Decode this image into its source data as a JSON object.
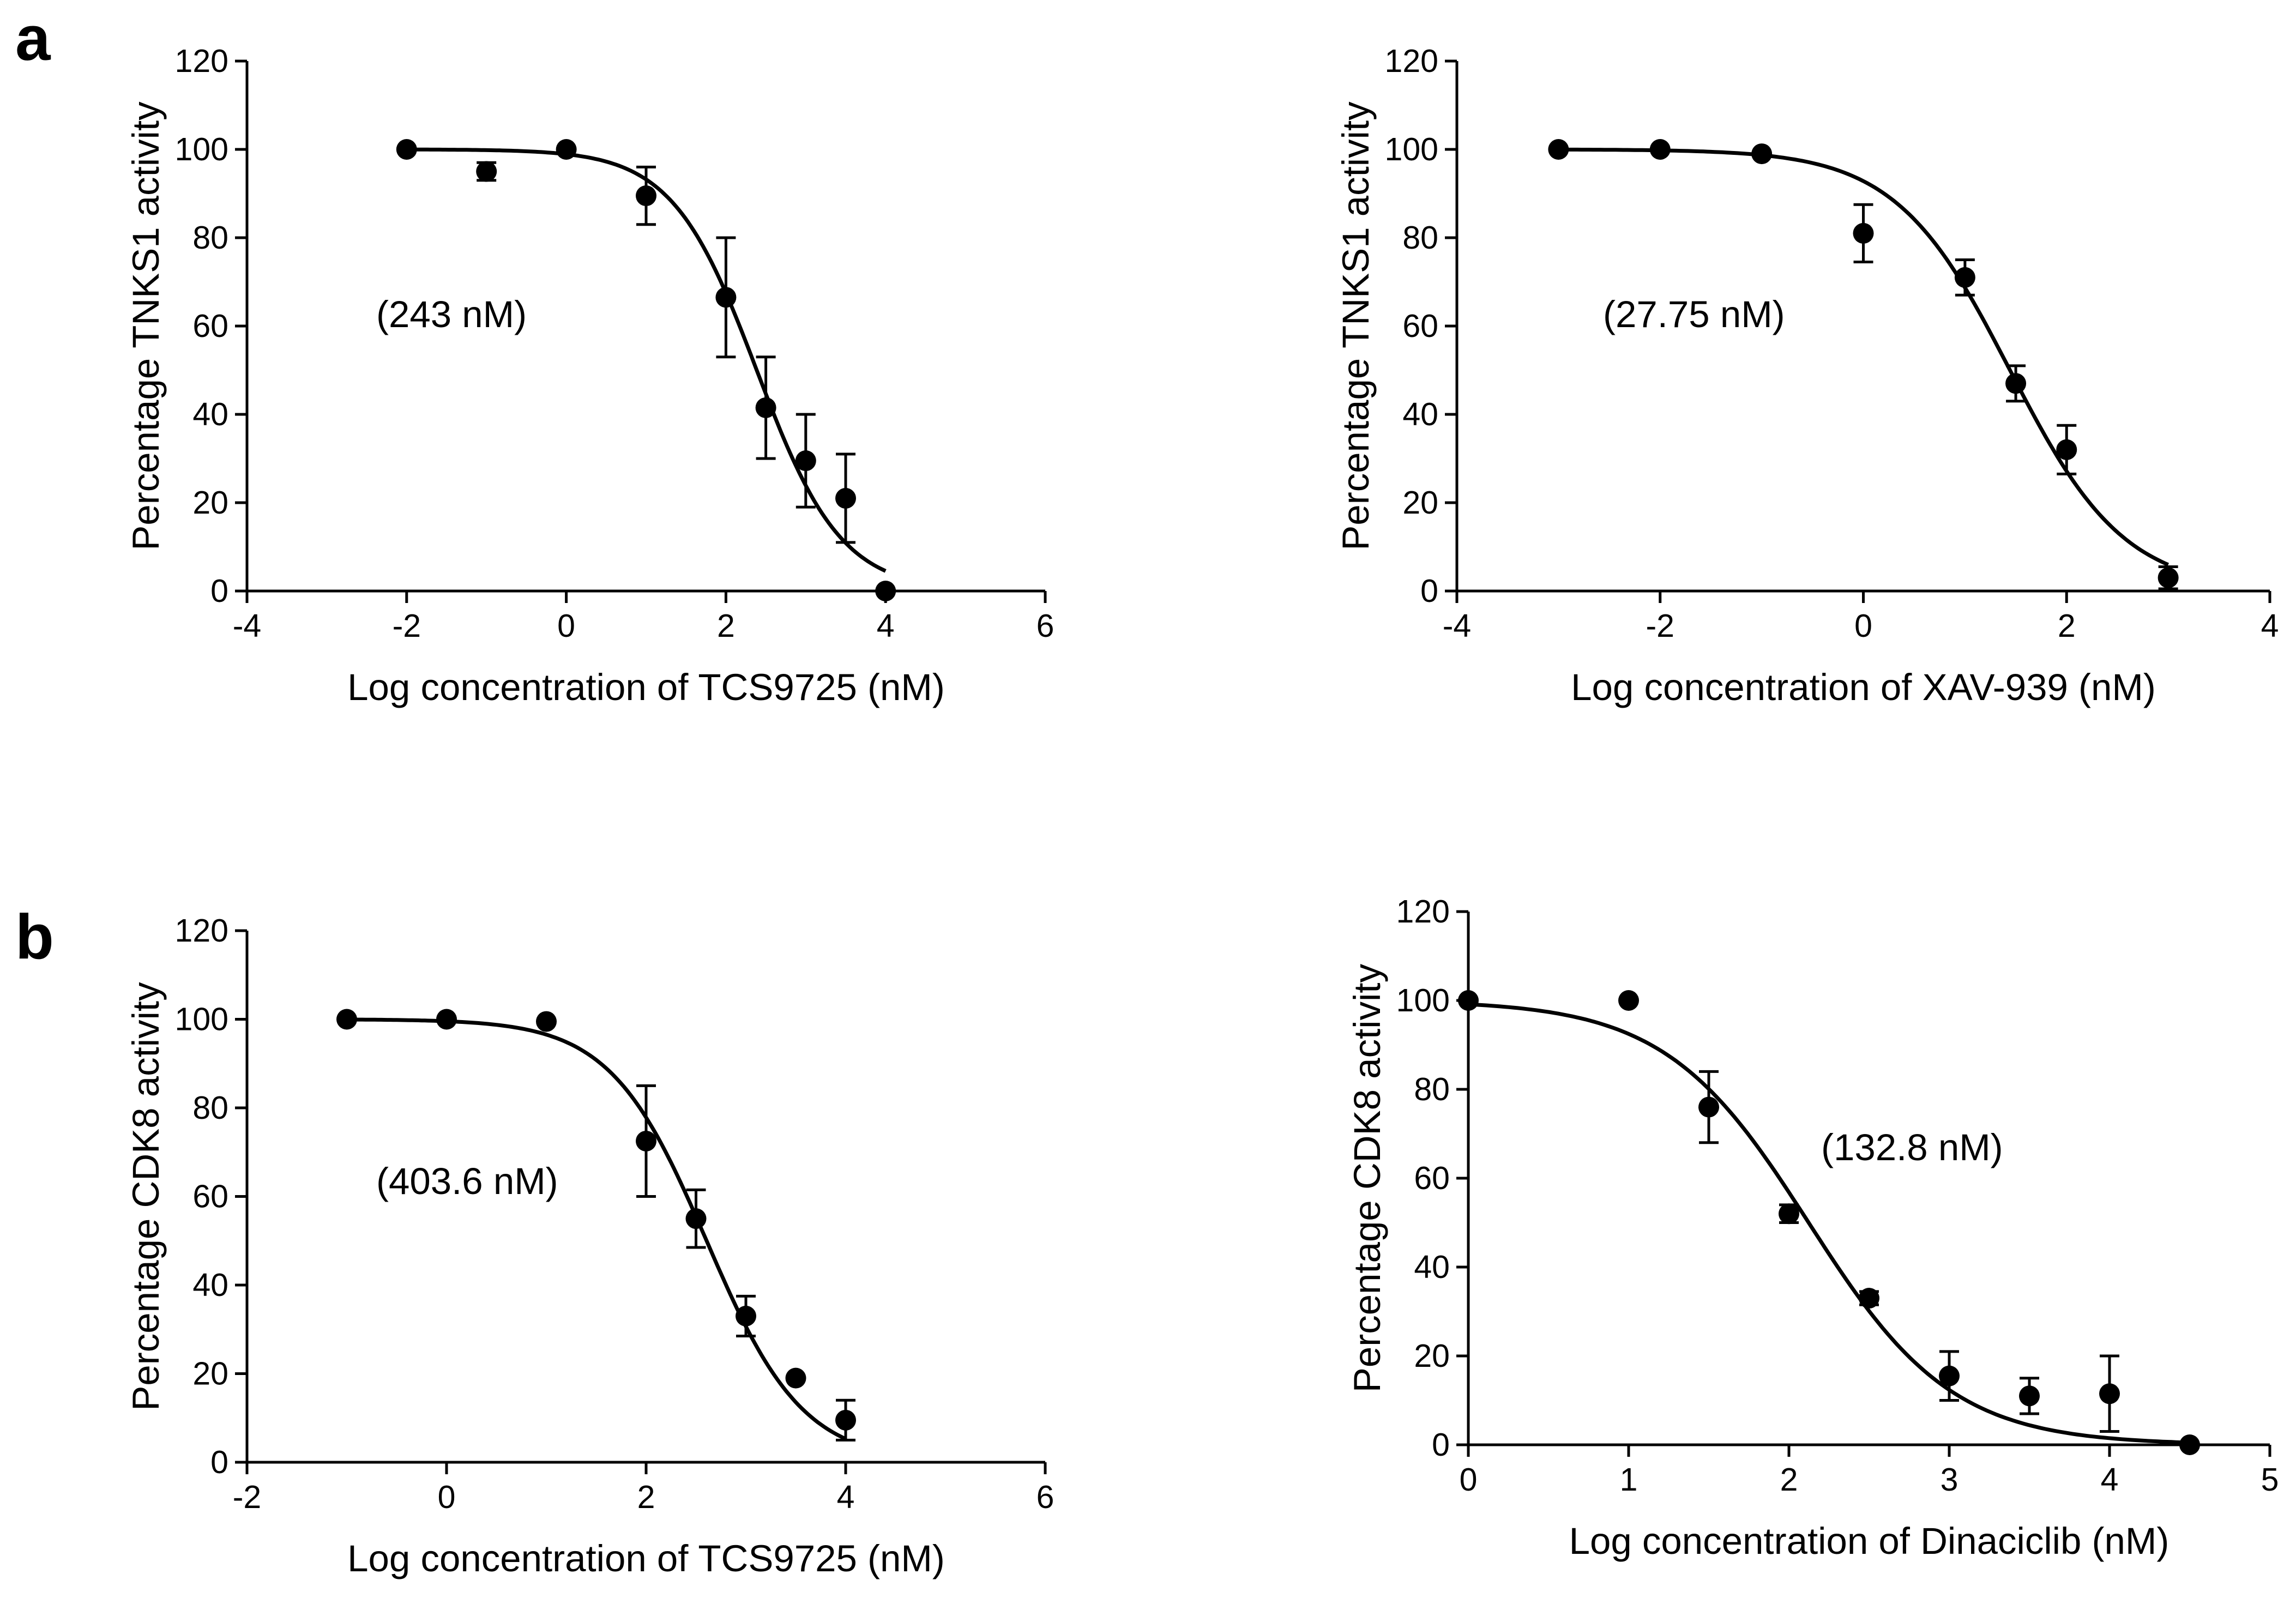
{
  "figure": {
    "panel_labels": [
      "a",
      "b"
    ]
  },
  "chart_data": [
    {
      "type": "scatter",
      "panel": "a",
      "fit": "sigmoidal dose-response curve",
      "xlabel": "Log concentration of TCS9725 (nM)",
      "ylabel": "Percentage TNKS1 activity",
      "annotation": "(243 nM)",
      "xlim": [
        -4,
        6
      ],
      "ylim": [
        0,
        120
      ],
      "xticks": [
        -4,
        -2,
        0,
        2,
        4,
        6
      ],
      "yticks": [
        0,
        20,
        40,
        60,
        80,
        100,
        120
      ],
      "points": [
        {
          "x": -2,
          "y": 100,
          "err": 0
        },
        {
          "x": -1,
          "y": 95,
          "err": 2
        },
        {
          "x": 0,
          "y": 100,
          "err": 0
        },
        {
          "x": 1,
          "y": 89.5,
          "err": 6.5
        },
        {
          "x": 2,
          "y": 66.5,
          "err": 13.5
        },
        {
          "x": 2.5,
          "y": 41.5,
          "err": 11.5
        },
        {
          "x": 3,
          "y": 29.5,
          "err": 10.5
        },
        {
          "x": 3.5,
          "y": 21,
          "err": 10
        },
        {
          "x": 4,
          "y": 0,
          "err": 0
        }
      ],
      "curve": {
        "top": 100,
        "bottom": 0,
        "log_ic50": 2.386,
        "hill": 0.82,
        "x_range": [
          -2,
          4
        ]
      }
    },
    {
      "type": "scatter",
      "panel": "",
      "fit": "sigmoidal dose-response curve",
      "xlabel": "Log concentration of XAV-939 (nM)",
      "ylabel": "Percentage TNKS1 activity",
      "annotation": "(27.75 nM)",
      "xlim": [
        -4,
        4
      ],
      "ylim": [
        0,
        120
      ],
      "xticks": [
        -4,
        -2,
        0,
        2,
        4
      ],
      "yticks": [
        0,
        20,
        40,
        60,
        80,
        100,
        120
      ],
      "points": [
        {
          "x": -3,
          "y": 100,
          "err": 0
        },
        {
          "x": -2,
          "y": 100,
          "err": 0
        },
        {
          "x": -1,
          "y": 99,
          "err": 0
        },
        {
          "x": 0,
          "y": 81,
          "err": 6.5
        },
        {
          "x": 1,
          "y": 71,
          "err": 4
        },
        {
          "x": 1.5,
          "y": 47,
          "err": 4
        },
        {
          "x": 2,
          "y": 32,
          "err": 5.5
        },
        {
          "x": 3,
          "y": 3,
          "err": 2.5
        }
      ],
      "curve": {
        "top": 100,
        "bottom": 0,
        "log_ic50": 1.443,
        "hill": 0.77,
        "x_range": [
          -3,
          3
        ]
      }
    },
    {
      "type": "scatter",
      "panel": "b",
      "fit": "sigmoidal dose-response curve",
      "xlabel": "Log concentration of TCS9725 (nM)",
      "ylabel": "Percentage CDK8 activity",
      "annotation": "(403.6 nM)",
      "xlim": [
        -2,
        6
      ],
      "ylim": [
        0,
        120
      ],
      "xticks": [
        -2,
        0,
        2,
        4,
        6
      ],
      "yticks": [
        0,
        20,
        40,
        60,
        80,
        100,
        120
      ],
      "points": [
        {
          "x": -1,
          "y": 100,
          "err": 0
        },
        {
          "x": 0,
          "y": 100,
          "err": 0
        },
        {
          "x": 1,
          "y": 99.5,
          "err": 0
        },
        {
          "x": 2,
          "y": 72.5,
          "err": 12.5
        },
        {
          "x": 2.5,
          "y": 55,
          "err": 6.5
        },
        {
          "x": 3,
          "y": 33,
          "err": 4.5
        },
        {
          "x": 3.5,
          "y": 19,
          "err": 0
        },
        {
          "x": 4,
          "y": 9.5,
          "err": 4.5
        }
      ],
      "curve": {
        "top": 100,
        "bottom": 0,
        "log_ic50": 2.606,
        "hill": 0.9,
        "x_range": [
          -1,
          4
        ]
      }
    },
    {
      "type": "scatter",
      "panel": "",
      "fit": "sigmoidal dose-response curve",
      "xlabel": "Log concentration of Dinaciclib (nM)",
      "ylabel": "Percentage CDK8 activity",
      "annotation": "(132.8 nM)",
      "xlim": [
        0,
        5
      ],
      "ylim": [
        0,
        120
      ],
      "xticks": [
        0,
        1,
        2,
        3,
        4,
        5
      ],
      "yticks": [
        0,
        20,
        40,
        60,
        80,
        100,
        120
      ],
      "points": [
        {
          "x": 0,
          "y": 100,
          "err": 0
        },
        {
          "x": 1,
          "y": 100,
          "err": 0
        },
        {
          "x": 1.5,
          "y": 76,
          "err": 8
        },
        {
          "x": 2,
          "y": 52,
          "err": 2
        },
        {
          "x": 2.5,
          "y": 33,
          "err": 1.5
        },
        {
          "x": 3,
          "y": 15.5,
          "err": 5.5
        },
        {
          "x": 3.5,
          "y": 11,
          "err": 4
        },
        {
          "x": 4,
          "y": 11.5,
          "err": 8.5
        },
        {
          "x": 4.5,
          "y": 0,
          "err": 0
        }
      ],
      "curve": {
        "top": 100,
        "bottom": 0,
        "log_ic50": 2.123,
        "hill": 0.97,
        "x_range": [
          0,
          4.5
        ]
      }
    }
  ]
}
